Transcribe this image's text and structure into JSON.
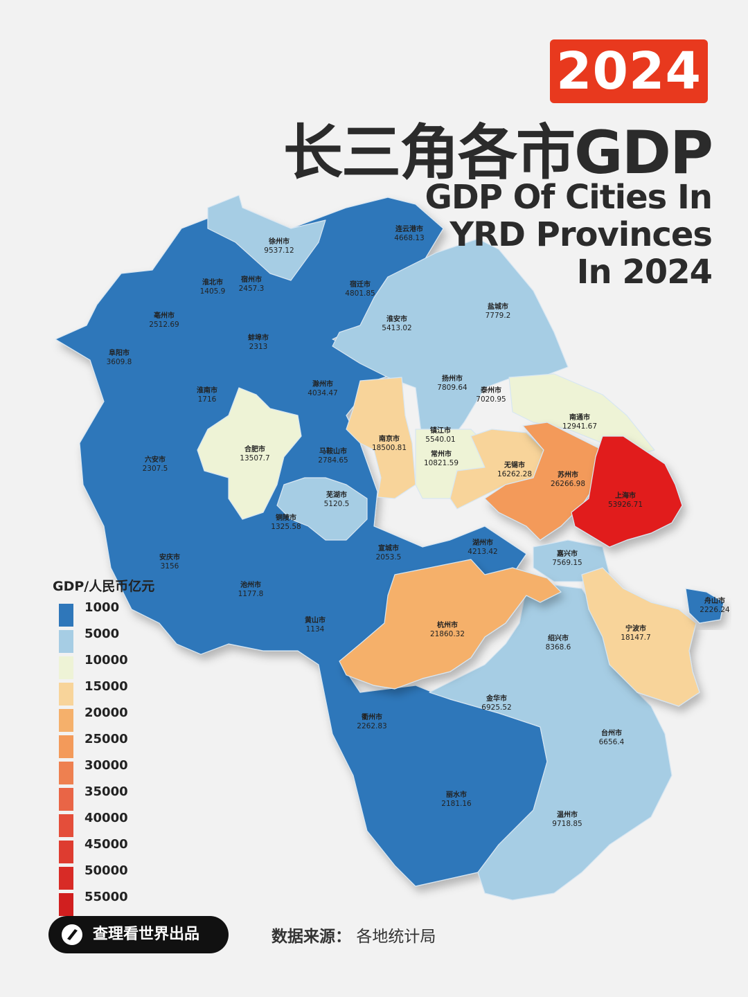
{
  "header": {
    "year": "2024",
    "title_zh": "长三角各市GDP",
    "title_en": [
      "GDP Of Cities In",
      "YRD Provinces",
      "In 2024"
    ]
  },
  "legend": {
    "title": "GDP/人民币亿元",
    "items": [
      {
        "label": "1000",
        "color": "#2f77ba"
      },
      {
        "label": "5000",
        "color": "#a6cde4"
      },
      {
        "label": "10000",
        "color": "#eef3d6"
      },
      {
        "label": "15000",
        "color": "#f8d49a"
      },
      {
        "label": "20000",
        "color": "#f5b06b"
      },
      {
        "label": "25000",
        "color": "#f39a5a"
      },
      {
        "label": "30000",
        "color": "#ee8050"
      },
      {
        "label": "35000",
        "color": "#e96546"
      },
      {
        "label": "40000",
        "color": "#e44e3a"
      },
      {
        "label": "45000",
        "color": "#de3c30"
      },
      {
        "label": "50000",
        "color": "#d82b26"
      },
      {
        "label": "55000",
        "color": "#d11f1f"
      }
    ]
  },
  "map": {
    "cities": [
      {
        "name": "徐州市",
        "value": "9537.12"
      },
      {
        "name": "连云港市",
        "value": "4668.13"
      },
      {
        "name": "淮北市",
        "value": "1405.9"
      },
      {
        "name": "宿州市",
        "value": "2457.3"
      },
      {
        "name": "宿迁市",
        "value": "4801.85"
      },
      {
        "name": "亳州市",
        "value": "2512.69"
      },
      {
        "name": "盐城市",
        "value": "7779.2"
      },
      {
        "name": "淮安市",
        "value": "5413.02"
      },
      {
        "name": "蚌埠市",
        "value": "2313"
      },
      {
        "name": "阜阳市",
        "value": "3609.8"
      },
      {
        "name": "扬州市",
        "value": "7809.64"
      },
      {
        "name": "淮南市",
        "value": "1716"
      },
      {
        "name": "滁州市",
        "value": "4034.47"
      },
      {
        "name": "泰州市",
        "value": "7020.95"
      },
      {
        "name": "南通市",
        "value": "12941.67"
      },
      {
        "name": "合肥市",
        "value": "13507.7"
      },
      {
        "name": "南京市",
        "value": "18500.81"
      },
      {
        "name": "镇江市",
        "value": "5540.01"
      },
      {
        "name": "马鞍山市",
        "value": "2784.65"
      },
      {
        "name": "六安市",
        "value": "2307.5"
      },
      {
        "name": "常州市",
        "value": "10821.59"
      },
      {
        "name": "无锡市",
        "value": "16262.28"
      },
      {
        "name": "苏州市",
        "value": "26266.98"
      },
      {
        "name": "芜湖市",
        "value": "5120.5"
      },
      {
        "name": "上海市",
        "value": "53926.71"
      },
      {
        "name": "铜陵市",
        "value": "1325.58"
      },
      {
        "name": "湖州市",
        "value": "4213.42"
      },
      {
        "name": "安庆市",
        "value": "3156"
      },
      {
        "name": "宣城市",
        "value": "2053.5"
      },
      {
        "name": "嘉兴市",
        "value": "7569.15"
      },
      {
        "name": "池州市",
        "value": "1177.8"
      },
      {
        "name": "舟山市",
        "value": "2226.24"
      },
      {
        "name": "黄山市",
        "value": "1134"
      },
      {
        "name": "杭州市",
        "value": "21860.32"
      },
      {
        "name": "绍兴市",
        "value": "8368.6"
      },
      {
        "name": "宁波市",
        "value": "18147.7"
      },
      {
        "name": "金华市",
        "value": "6925.52"
      },
      {
        "name": "衢州市",
        "value": "2262.83"
      },
      {
        "name": "台州市",
        "value": "6656.4"
      },
      {
        "name": "丽水市",
        "value": "2181.16"
      },
      {
        "name": "温州市",
        "value": "9718.85"
      }
    ]
  },
  "footer": {
    "producer": "查理看世界出品",
    "source_label": "数据来源：",
    "source_value": "各地统计局"
  }
}
